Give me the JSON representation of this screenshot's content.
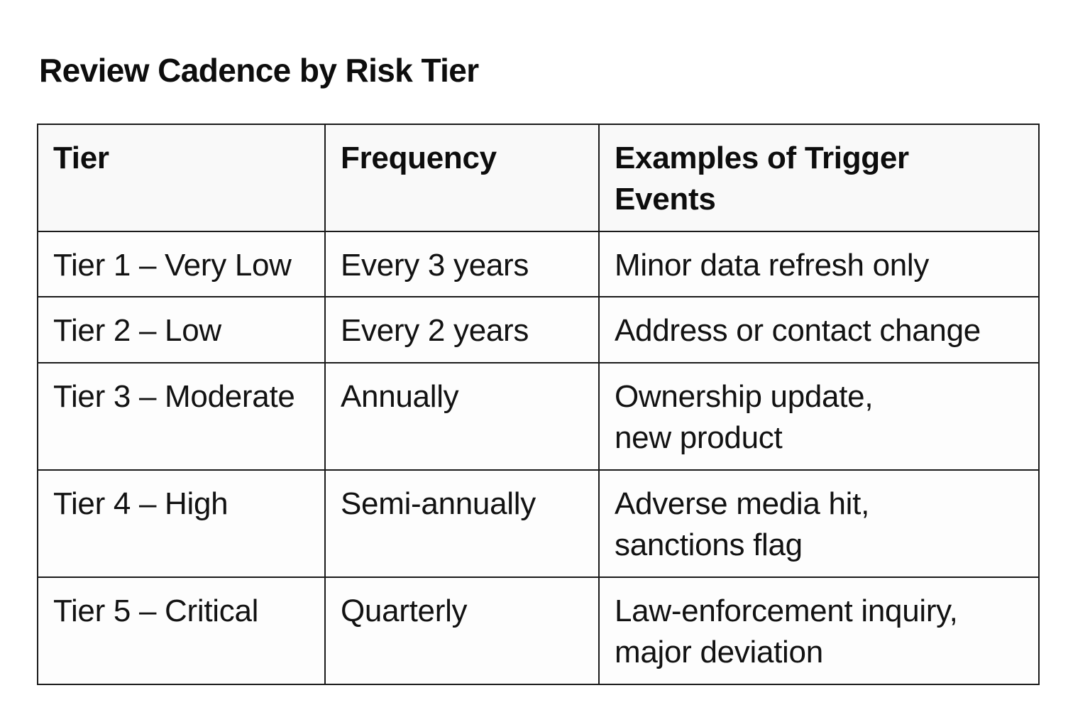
{
  "title": "Review Cadence by Risk Tier",
  "table": {
    "headers": [
      "Tier",
      "Frequency",
      "Examples of Trigger\nEvents"
    ],
    "rows": [
      {
        "tier": "Tier 1 – Very Low",
        "frequency": "Every 3 years",
        "examples": "Minor data refresh only"
      },
      {
        "tier": "Tier 2 – Low",
        "frequency": "Every 2 years",
        "examples": "Address or contact change"
      },
      {
        "tier": "Tier 3 – Moderate",
        "frequency": "Annually",
        "examples": "Ownership update,\nnew product"
      },
      {
        "tier": "Tier 4 – High",
        "frequency": "Semi-annually",
        "examples": "Adverse media hit,\nsanctions flag"
      },
      {
        "tier": "Tier 5 – Critical",
        "frequency": "Quarterly",
        "examples": "Law-enforcement inquiry,\nmajor deviation"
      }
    ],
    "colors": {
      "border": "#1a1a1a",
      "header_background": "#f9f9f9",
      "cell_background": "#fdfdfd",
      "text": "#121212",
      "page_background": "#ffffff"
    }
  }
}
